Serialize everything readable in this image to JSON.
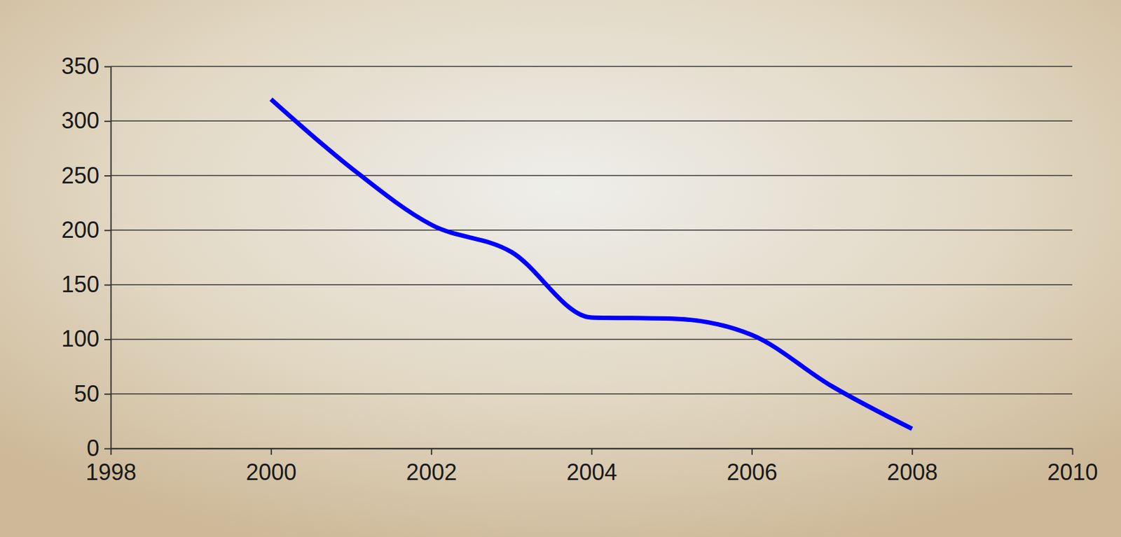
{
  "chart_data": {
    "type": "line",
    "x": [
      2000,
      2001,
      2002,
      2003,
      2004,
      2005,
      2006,
      2007,
      2008
    ],
    "values": [
      320,
      257,
      205,
      180,
      120,
      119,
      104,
      57,
      18
    ],
    "color": "#0000ff",
    "xlim": [
      1998,
      2010
    ],
    "xticks": [
      1998,
      2000,
      2002,
      2004,
      2006,
      2008,
      2010
    ],
    "ylim": [
      0,
      350
    ],
    "yticks": [
      0,
      50,
      100,
      150,
      200,
      250,
      300,
      350
    ],
    "grid": true
  }
}
